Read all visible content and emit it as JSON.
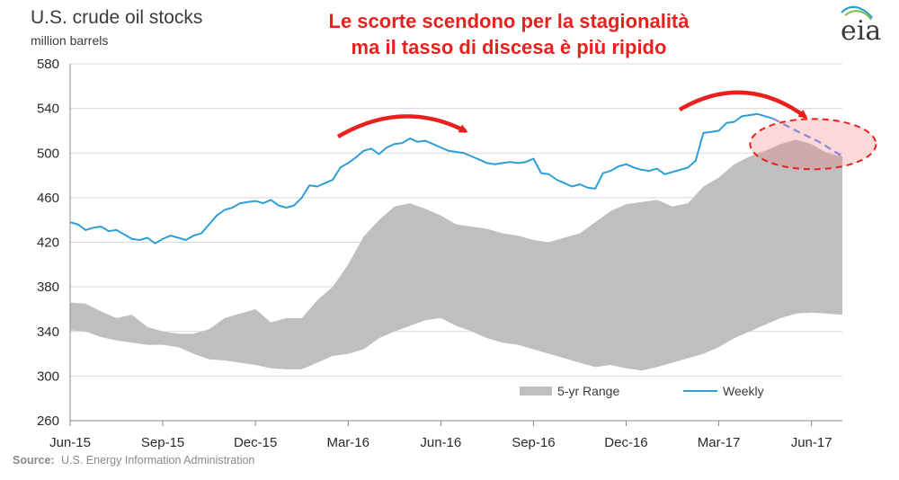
{
  "chart_data": {
    "type": "area",
    "title": "U.S. crude oil stocks",
    "ylabel": "million barrels",
    "ylim": [
      260,
      580
    ],
    "yticks": [
      260,
      300,
      340,
      380,
      420,
      460,
      500,
      540,
      580
    ],
    "x_tick_labels": [
      "Jun-15",
      "Sep-15",
      "Dec-15",
      "Mar-16",
      "Jun-16",
      "Sep-16",
      "Dec-16",
      "Mar-17",
      "Jun-17"
    ],
    "x_tick_months": [
      0,
      3,
      6,
      9,
      12,
      15,
      18,
      21,
      24
    ],
    "x_range_months": [
      0,
      25
    ],
    "grid": "horizontal",
    "legend_position": "bottom-right",
    "series": [
      {
        "name": "5-yr Range",
        "kind": "band",
        "color": "#bfbfbf",
        "x_months": [
          0,
          0.5,
          1,
          1.5,
          2,
          2.5,
          3,
          3.5,
          4,
          4.5,
          5,
          5.5,
          6,
          6.5,
          7,
          7.5,
          8,
          8.5,
          9,
          9.5,
          10,
          10.5,
          11,
          11.5,
          12,
          12.5,
          13,
          13.5,
          14,
          14.5,
          15,
          15.5,
          16,
          16.5,
          17,
          17.5,
          18,
          18.5,
          19,
          19.5,
          20,
          20.5,
          21,
          21.5,
          22,
          22.5,
          23,
          23.5,
          24,
          24.5,
          25
        ],
        "upper": [
          366,
          365,
          358,
          352,
          355,
          344,
          340,
          338,
          338,
          342,
          352,
          356,
          360,
          348,
          352,
          352,
          368,
          380,
          400,
          425,
          440,
          452,
          455,
          450,
          444,
          436,
          434,
          432,
          428,
          426,
          422,
          420,
          424,
          428,
          438,
          448,
          454,
          456,
          458,
          452,
          455,
          470,
          478,
          490,
          497,
          502,
          508,
          512,
          508,
          500,
          497
        ],
        "lower": [
          341,
          340,
          335,
          332,
          330,
          328,
          328,
          326,
          320,
          315,
          314,
          312,
          310,
          307,
          306,
          306,
          312,
          318,
          320,
          324,
          334,
          340,
          345,
          350,
          352,
          345,
          340,
          334,
          330,
          328,
          324,
          320,
          316,
          312,
          308,
          310,
          307,
          305,
          308,
          312,
          316,
          320,
          326,
          334,
          340,
          346,
          352,
          356,
          357,
          356,
          355
        ]
      },
      {
        "name": "Weekly",
        "kind": "line",
        "color": "#2e9fd4",
        "x_months": [
          0,
          0.25,
          0.5,
          0.75,
          1,
          1.25,
          1.5,
          1.75,
          2,
          2.25,
          2.5,
          2.75,
          3,
          3.25,
          3.5,
          3.75,
          4,
          4.25,
          4.5,
          4.75,
          5,
          5.25,
          5.5,
          5.75,
          6,
          6.25,
          6.5,
          6.75,
          7,
          7.25,
          7.5,
          7.75,
          8,
          8.25,
          8.5,
          8.75,
          9,
          9.25,
          9.5,
          9.75,
          10,
          10.25,
          10.5,
          10.75,
          11,
          11.25,
          11.5,
          11.75,
          12,
          12.25,
          12.5,
          12.75,
          13,
          13.25,
          13.5,
          13.75,
          14,
          14.25,
          14.5,
          14.75,
          15,
          15.25,
          15.5,
          15.75,
          16,
          16.25,
          16.5,
          16.75,
          17,
          17.25,
          17.5,
          17.75,
          18,
          18.25,
          18.5,
          18.75,
          19,
          19.25,
          19.5,
          19.75,
          20,
          20.25,
          20.5,
          20.75,
          21,
          21.25,
          21.5,
          21.75,
          22,
          22.25,
          22.5,
          22.75
        ],
        "values": [
          438,
          436,
          431,
          433,
          434,
          430,
          431,
          427,
          423,
          422,
          424,
          419,
          423,
          426,
          424,
          422,
          426,
          428,
          436,
          444,
          449,
          451,
          455,
          456,
          457,
          455,
          458,
          453,
          451,
          453,
          460,
          471,
          470,
          473,
          476,
          487,
          491,
          496,
          502,
          504,
          499,
          505,
          508,
          509,
          513,
          510,
          511,
          508,
          505,
          502,
          501,
          500,
          497,
          494,
          491,
          490,
          491,
          492,
          491,
          492,
          495,
          482,
          481,
          476,
          473,
          470,
          472,
          469,
          468,
          482,
          484,
          488,
          490,
          487,
          485,
          484,
          486,
          481,
          483,
          485,
          487,
          493,
          518,
          519,
          520,
          527,
          528,
          533,
          534,
          535,
          533,
          531
        ]
      },
      {
        "name": "",
        "kind": "projection",
        "color": "#8e86d6",
        "x_months": [
          22.75,
          23.5,
          24.25,
          25
        ],
        "values": [
          531,
          520,
          510,
          497
        ]
      }
    ]
  },
  "annotation": {
    "headline_lines": [
      "Le scorte scendono per la stagionalità",
      "ma il tasso di discesa è più ripido"
    ],
    "color": "#e8211f"
  },
  "source": {
    "label": "Source:",
    "text": "U.S. Energy Information Administration"
  },
  "logo": {
    "text": "eia",
    "name": "eia-logo"
  }
}
